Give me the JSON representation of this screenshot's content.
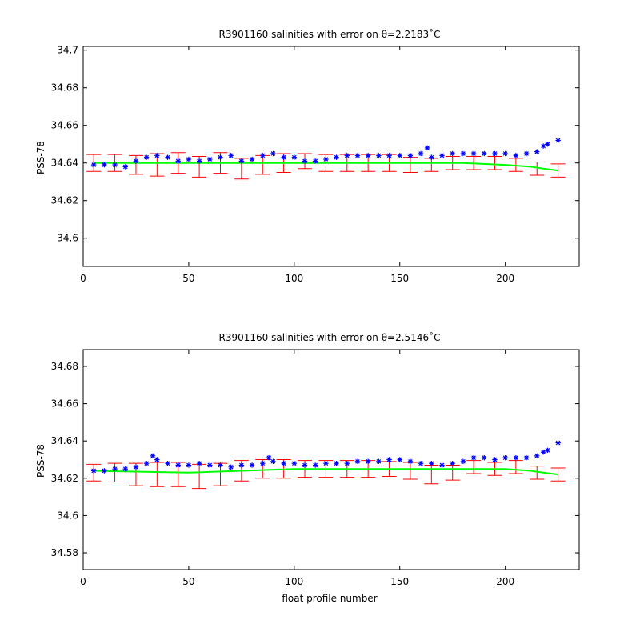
{
  "colors": {
    "climatology_errorbar": "#ff0000",
    "mapped_line": "#00ff00",
    "float_points": "#0000ff",
    "axes": "#000000",
    "background": "#ffffff"
  },
  "chart_data": [
    {
      "type": "scatter",
      "title": "R3901160 salinities with error on θ=2.2183˚C",
      "xlabel": "",
      "ylabel": "PSS-78",
      "xlim": [
        0,
        235
      ],
      "ylim": [
        34.585,
        34.702
      ],
      "xticks": [
        0,
        50,
        100,
        150,
        200
      ],
      "xtick_labels": [
        "0",
        "50",
        "100",
        "150",
        "200"
      ],
      "yticks": [
        34.6,
        34.62,
        34.64,
        34.66,
        34.68,
        34.7
      ],
      "ytick_labels": [
        "34.6",
        "34.62",
        "34.64",
        "34.66",
        "34.68",
        "34.7"
      ],
      "grid": false,
      "series": [
        {
          "kind": "errorbar",
          "color": "#ff0000",
          "x": [
            5,
            15,
            25,
            35,
            45,
            55,
            65,
            75,
            85,
            95,
            105,
            115,
            125,
            135,
            145,
            155,
            165,
            175,
            185,
            195,
            205,
            215,
            225
          ],
          "values": [
            34.64,
            34.64,
            34.639,
            34.639,
            34.64,
            34.638,
            34.64,
            34.637,
            34.639,
            34.64,
            34.641,
            34.64,
            34.64,
            34.64,
            34.64,
            34.639,
            34.639,
            34.64,
            34.64,
            34.64,
            34.639,
            34.637,
            34.636
          ],
          "error": [
            0.0045,
            0.0045,
            0.005,
            0.006,
            0.0055,
            0.0055,
            0.0055,
            0.0055,
            0.005,
            0.005,
            0.004,
            0.0045,
            0.0045,
            0.0045,
            0.0045,
            0.004,
            0.0035,
            0.0035,
            0.0035,
            0.0035,
            0.0035,
            0.0035,
            0.0035
          ]
        },
        {
          "kind": "line",
          "color": "#00ff00",
          "x": [
            5,
            50,
            100,
            150,
            180,
            200,
            212,
            218,
            225
          ],
          "values": [
            34.64,
            34.64,
            34.64,
            34.64,
            34.64,
            34.639,
            34.638,
            34.637,
            34.636
          ]
        },
        {
          "kind": "markers",
          "color": "#0000ff",
          "x": [
            5,
            10,
            15,
            20,
            25,
            30,
            35,
            40,
            45,
            50,
            55,
            60,
            65,
            70,
            75,
            80,
            85,
            90,
            95,
            100,
            105,
            110,
            115,
            120,
            125,
            130,
            135,
            140,
            145,
            150,
            155,
            160,
            163,
            165,
            170,
            175,
            180,
            185,
            190,
            195,
            200,
            205,
            210,
            215,
            218,
            220,
            225
          ],
          "values": [
            34.639,
            34.639,
            34.639,
            34.638,
            34.641,
            34.643,
            34.644,
            34.643,
            34.641,
            34.642,
            34.641,
            34.642,
            34.643,
            34.644,
            34.641,
            34.642,
            34.644,
            34.645,
            34.643,
            34.643,
            34.641,
            34.641,
            34.642,
            34.643,
            34.644,
            34.644,
            34.644,
            34.644,
            34.644,
            34.644,
            34.644,
            34.645,
            34.648,
            34.643,
            34.644,
            34.645,
            34.645,
            34.645,
            34.645,
            34.645,
            34.645,
            34.644,
            34.645,
            34.646,
            34.649,
            34.65,
            34.652
          ]
        }
      ]
    },
    {
      "type": "scatter",
      "title": "R3901160 salinities with error on θ=2.5146˚C",
      "xlabel": "float profile number",
      "ylabel": "PSS-78",
      "xlim": [
        0,
        235
      ],
      "ylim": [
        34.571,
        34.689
      ],
      "xticks": [
        0,
        50,
        100,
        150,
        200
      ],
      "xtick_labels": [
        "0",
        "50",
        "100",
        "150",
        "200"
      ],
      "yticks": [
        34.58,
        34.6,
        34.62,
        34.64,
        34.66,
        34.68
      ],
      "ytick_labels": [
        "34.58",
        "34.6",
        "34.62",
        "34.64",
        "34.66",
        "34.68"
      ],
      "grid": false,
      "series": [
        {
          "kind": "errorbar",
          "color": "#ff0000",
          "x": [
            5,
            15,
            25,
            35,
            45,
            55,
            65,
            75,
            85,
            95,
            105,
            115,
            125,
            135,
            145,
            155,
            165,
            175,
            185,
            195,
            205,
            215,
            225
          ],
          "values": [
            34.623,
            34.623,
            34.622,
            34.622,
            34.622,
            34.621,
            34.622,
            34.624,
            34.625,
            34.625,
            34.625,
            34.625,
            34.625,
            34.625,
            34.625,
            34.624,
            34.622,
            34.623,
            34.626,
            34.625,
            34.626,
            34.623,
            34.622
          ],
          "error": [
            0.0045,
            0.005,
            0.006,
            0.0065,
            0.0065,
            0.0065,
            0.006,
            0.0055,
            0.005,
            0.005,
            0.0045,
            0.0045,
            0.0045,
            0.0045,
            0.004,
            0.0045,
            0.005,
            0.004,
            0.0035,
            0.0035,
            0.0035,
            0.0035,
            0.0035
          ]
        },
        {
          "kind": "line",
          "color": "#00ff00",
          "x": [
            5,
            50,
            100,
            150,
            180,
            200,
            212,
            218,
            225
          ],
          "values": [
            34.624,
            34.623,
            34.625,
            34.625,
            34.625,
            34.625,
            34.624,
            34.623,
            34.622
          ]
        },
        {
          "kind": "markers",
          "color": "#0000ff",
          "x": [
            5,
            10,
            15,
            20,
            25,
            30,
            33,
            35,
            40,
            45,
            50,
            55,
            60,
            65,
            70,
            75,
            80,
            85,
            88,
            90,
            95,
            100,
            105,
            110,
            115,
            120,
            125,
            130,
            135,
            140,
            145,
            150,
            155,
            160,
            165,
            170,
            175,
            180,
            185,
            190,
            195,
            200,
            205,
            210,
            215,
            218,
            220,
            225
          ],
          "values": [
            34.624,
            34.624,
            34.625,
            34.625,
            34.626,
            34.628,
            34.632,
            34.63,
            34.628,
            34.627,
            34.627,
            34.628,
            34.627,
            34.627,
            34.626,
            34.627,
            34.627,
            34.628,
            34.631,
            34.629,
            34.628,
            34.628,
            34.627,
            34.627,
            34.628,
            34.628,
            34.628,
            34.629,
            34.629,
            34.629,
            34.63,
            34.63,
            34.629,
            34.628,
            34.628,
            34.627,
            34.628,
            34.629,
            34.631,
            34.631,
            34.63,
            34.631,
            34.631,
            34.631,
            34.632,
            34.634,
            34.635,
            34.639
          ]
        }
      ]
    }
  ]
}
